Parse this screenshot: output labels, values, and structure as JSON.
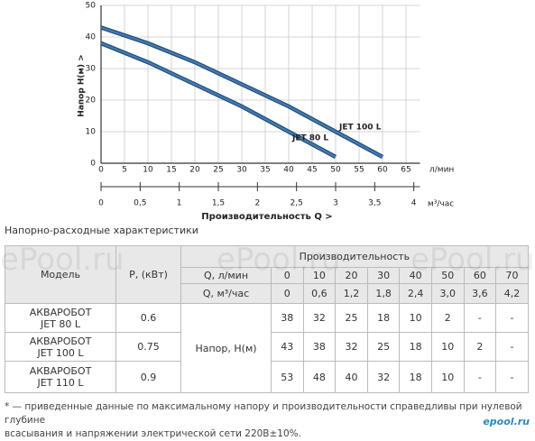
{
  "chart_data": {
    "type": "line",
    "x": [
      0,
      10,
      20,
      30,
      40,
      50,
      60
    ],
    "series": [
      {
        "name": "JET 100 L",
        "color": "#3d7cb8",
        "values": [
          43,
          38,
          32,
          25,
          18,
          10,
          2
        ]
      },
      {
        "name": "JET 80 L",
        "color": "#3d7cb8",
        "values": [
          38,
          32,
          25,
          18,
          10,
          2,
          null
        ]
      }
    ],
    "xlim": [
      0,
      68
    ],
    "xticks": [
      0,
      5,
      10,
      15,
      20,
      25,
      30,
      35,
      40,
      45,
      50,
      55,
      60,
      65
    ],
    "ylim": [
      0,
      50
    ],
    "yticks": [
      0,
      10,
      20,
      30,
      40,
      50
    ],
    "x_unit": "л/мин",
    "y_label": "Напор  H(м)  >",
    "x2lim": [
      0,
      4.08
    ],
    "x2ticks": [
      0,
      {
        "value": 0.5,
        "label": "0,5"
      },
      1,
      {
        "value": 1.5,
        "label": "1,5"
      },
      2,
      {
        "value": 2.5,
        "label": "2,5"
      },
      3,
      {
        "value": 3.5,
        "label": "3,5"
      },
      4
    ],
    "x2_unit": "м³/час",
    "x2_label": "Производительность Q  >",
    "grid": true
  },
  "section_title": "Напорно-расходные характеристики",
  "watermark": "ePool.ru",
  "logo": "epool.ru",
  "table": {
    "model_header": "Модель",
    "power_header": "P, (кВт)",
    "flow_header": "Производительность",
    "lpm_label": "Q, л/мин",
    "m3h_label": "Q, м³/час",
    "head_label": "Напор, H(м)",
    "lpm": [
      0,
      10,
      20,
      30,
      40,
      50,
      60,
      70
    ],
    "m3h": [
      "0",
      "0,6",
      "1,2",
      "1,8",
      "2,4",
      "3,0",
      "3,6",
      "4,2"
    ],
    "rows": [
      {
        "model": [
          "АКВАРОБОТ",
          "JET 80 L"
        ],
        "power": "0.6",
        "head": [
          "38",
          "32",
          "25",
          "18",
          "10",
          "2",
          "-",
          "-"
        ]
      },
      {
        "model": [
          "АКВАРОБОТ",
          "JET 100 L"
        ],
        "power": "0.75",
        "head": [
          "43",
          "38",
          "32",
          "25",
          "18",
          "10",
          "2",
          "-"
        ]
      },
      {
        "model": [
          "АКВАРОБОТ",
          "JET 110 L"
        ],
        "power": "0.9",
        "head": [
          "53",
          "48",
          "40",
          "32",
          "18",
          "10",
          "-",
          "-"
        ]
      }
    ]
  },
  "footnote": [
    "* — приведенные данные по максимальному напору и производительности справедливы при нулевой глубине",
    "всасывания и напряжении электрической сети 220В±10%."
  ]
}
